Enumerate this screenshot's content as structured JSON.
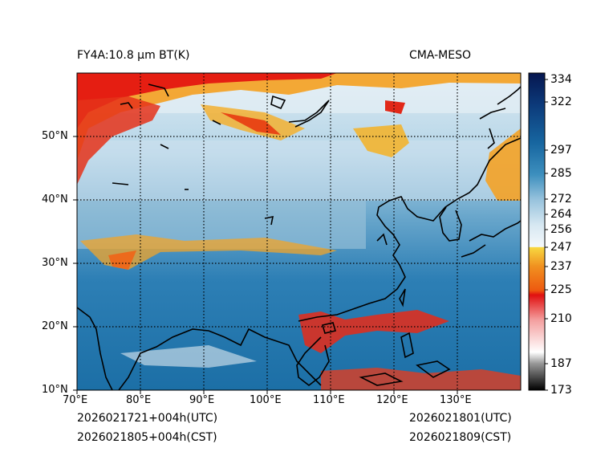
{
  "header": {
    "left_title": "FY4A:10.8 µm BT(K)",
    "right_title": "CMA-MESO"
  },
  "footer": {
    "init_utc": "2026021721+004h(UTC)",
    "init_cst": "2026021805+004h(CST)",
    "valid_utc": "2026021801(UTC)",
    "valid_cst": "2026021809(CST)"
  },
  "map": {
    "lon_range": [
      70,
      140
    ],
    "lat_range": [
      10,
      60
    ],
    "lon_ticks": [
      "70°E",
      "80°E",
      "90°E",
      "100°E",
      "110°E",
      "120°E",
      "130°E"
    ],
    "lat_ticks": [
      "10°N",
      "20°N",
      "30°N",
      "40°N",
      "50°N"
    ]
  },
  "colorbar": {
    "min": 173,
    "max": 337,
    "ticks": [
      "173",
      "187",
      "210",
      "225",
      "237",
      "247",
      "256",
      "264",
      "272",
      "285",
      "297",
      "322",
      "334"
    ],
    "colors": {
      "black": "#000000",
      "gray": "#bdbdbd",
      "white": "#ffffff",
      "red": "#e01010",
      "orange": "#f07a10",
      "yellow": "#f8d840",
      "light_blue": "#cfe3ef",
      "mid_blue": "#3d8fbe",
      "deep_blue": "#1766a0",
      "navy": "#06164f"
    }
  }
}
